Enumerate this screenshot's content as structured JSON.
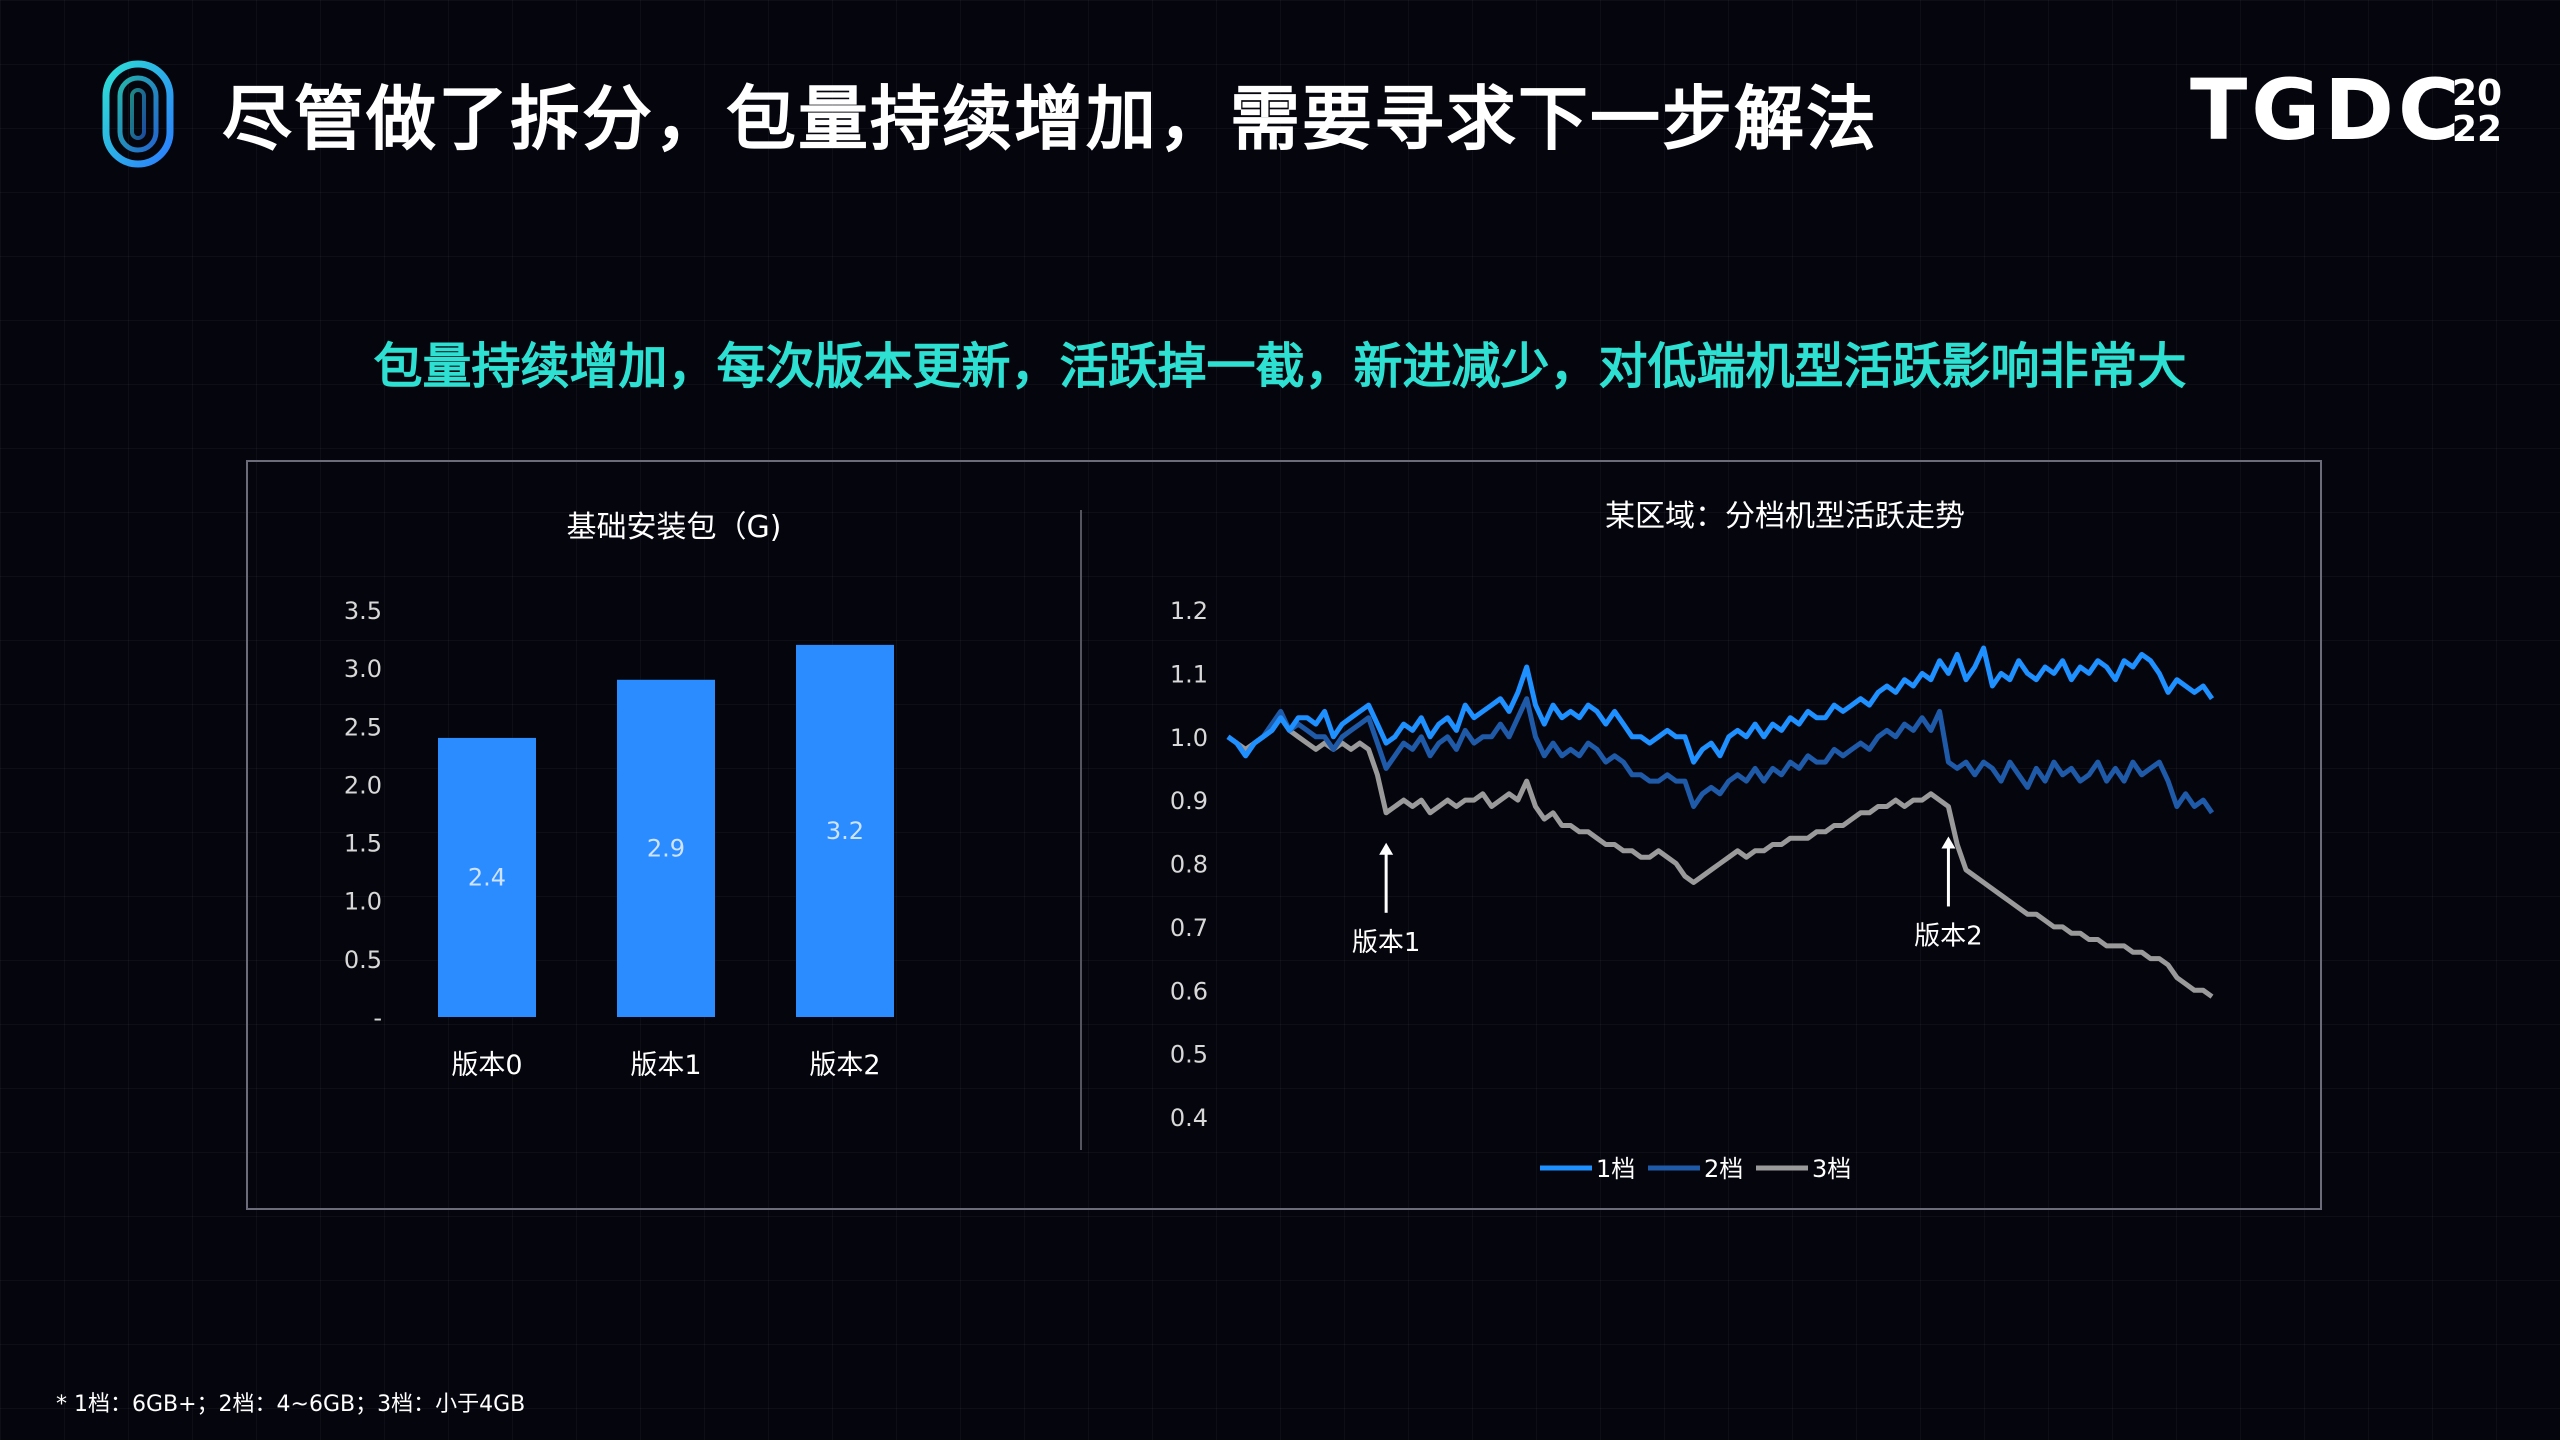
{
  "header": {
    "title": "尽管做了拆分，包量持续增加，需要寻求下一步解法",
    "brand": "TGDC",
    "brand_year_top": "20",
    "brand_year_bottom": "22"
  },
  "subtitle": "包量持续增加，每次版本更新，活跃掉一截，新进减少，对低端机型活跃影响非常大",
  "colors": {
    "accent": "#2de0d2",
    "bar": "#2b8cff",
    "tier1": "#1e90ff",
    "tier2": "#1f5aa8",
    "tier3": "#9a9a9a"
  },
  "chart_data": [
    {
      "type": "bar",
      "title": "基础安装包（G)",
      "categories": [
        "版本0",
        "版本1",
        "版本2"
      ],
      "values": [
        2.4,
        2.9,
        3.2
      ],
      "data_labels": [
        "2.4",
        "2.9",
        "3.2"
      ],
      "ylim": [
        0,
        3.5
      ],
      "yticks": [
        0,
        0.5,
        1.0,
        1.5,
        2.0,
        2.5,
        3.0,
        3.5
      ],
      "ytick_labels": [
        "-",
        "0.5",
        "1.0",
        "1.5",
        "2.0",
        "2.5",
        "3.0",
        "3.5"
      ],
      "grid": false
    },
    {
      "type": "line",
      "title": "某区域：分档机型活跃走势",
      "ylim": [
        0.4,
        1.2
      ],
      "yticks": [
        0.4,
        0.5,
        0.6,
        0.7,
        0.8,
        0.9,
        1.0,
        1.1,
        1.2
      ],
      "ytick_labels": [
        "0.4",
        "0.5",
        "0.6",
        "0.7",
        "0.8",
        "0.9",
        "1.0",
        "1.1",
        "1.2"
      ],
      "legend_position": "bottom",
      "grid": false,
      "series": [
        {
          "name": "1档",
          "values": [
            1.0,
            0.99,
            0.97,
            0.99,
            1.0,
            1.01,
            1.03,
            1.01,
            1.03,
            1.03,
            1.02,
            1.04,
            1.0,
            1.02,
            1.03,
            1.04,
            1.05,
            1.02,
            0.99,
            1.0,
            1.02,
            1.01,
            1.03,
            1.0,
            1.02,
            1.03,
            1.01,
            1.05,
            1.03,
            1.04,
            1.05,
            1.06,
            1.04,
            1.07,
            1.11,
            1.05,
            1.02,
            1.05,
            1.03,
            1.04,
            1.03,
            1.05,
            1.04,
            1.02,
            1.04,
            1.02,
            1.0,
            1.0,
            0.99,
            1.0,
            1.01,
            1.0,
            1.0,
            0.96,
            0.98,
            0.99,
            0.97,
            1.0,
            1.01,
            1.0,
            1.02,
            1.0,
            1.02,
            1.01,
            1.03,
            1.02,
            1.04,
            1.03,
            1.03,
            1.05,
            1.04,
            1.05,
            1.06,
            1.05,
            1.07,
            1.08,
            1.07,
            1.09,
            1.08,
            1.1,
            1.09,
            1.12,
            1.1,
            1.13,
            1.09,
            1.11,
            1.14,
            1.08,
            1.1,
            1.09,
            1.12,
            1.1,
            1.09,
            1.11,
            1.1,
            1.12,
            1.09,
            1.11,
            1.1,
            1.12,
            1.11,
            1.09,
            1.12,
            1.11,
            1.13,
            1.12,
            1.1,
            1.07,
            1.09,
            1.08,
            1.07,
            1.08,
            1.06
          ]
        },
        {
          "name": "2档",
          "values": [
            1.0,
            0.99,
            0.97,
            0.99,
            1.0,
            1.02,
            1.04,
            1.01,
            1.02,
            1.01,
            1.0,
            1.0,
            0.98,
            1.0,
            1.01,
            1.02,
            1.03,
            0.99,
            0.95,
            0.97,
            0.99,
            0.98,
            1.0,
            0.97,
            0.99,
            1.0,
            0.98,
            1.01,
            0.99,
            1.0,
            1.0,
            1.02,
            1.0,
            1.03,
            1.06,
            1.0,
            0.97,
            0.99,
            0.97,
            0.98,
            0.97,
            0.99,
            0.98,
            0.96,
            0.97,
            0.96,
            0.94,
            0.94,
            0.93,
            0.93,
            0.94,
            0.93,
            0.93,
            0.89,
            0.91,
            0.92,
            0.91,
            0.93,
            0.94,
            0.93,
            0.95,
            0.93,
            0.95,
            0.94,
            0.96,
            0.95,
            0.97,
            0.96,
            0.96,
            0.98,
            0.97,
            0.98,
            0.99,
            0.98,
            1.0,
            1.01,
            1.0,
            1.02,
            1.01,
            1.03,
            1.01,
            1.04,
            0.96,
            0.95,
            0.96,
            0.94,
            0.96,
            0.95,
            0.93,
            0.96,
            0.94,
            0.92,
            0.95,
            0.93,
            0.96,
            0.94,
            0.95,
            0.93,
            0.94,
            0.96,
            0.93,
            0.95,
            0.93,
            0.96,
            0.94,
            0.95,
            0.96,
            0.93,
            0.89,
            0.91,
            0.89,
            0.9,
            0.88
          ]
        },
        {
          "name": "3档",
          "values": [
            1.0,
            0.99,
            0.98,
            0.99,
            1.0,
            1.01,
            1.03,
            1.01,
            1.0,
            0.99,
            0.98,
            0.99,
            0.98,
            0.99,
            0.98,
            0.99,
            0.98,
            0.94,
            0.88,
            0.89,
            0.9,
            0.89,
            0.9,
            0.88,
            0.89,
            0.9,
            0.89,
            0.9,
            0.9,
            0.91,
            0.89,
            0.9,
            0.91,
            0.9,
            0.93,
            0.89,
            0.87,
            0.88,
            0.86,
            0.86,
            0.85,
            0.85,
            0.84,
            0.83,
            0.83,
            0.82,
            0.82,
            0.81,
            0.81,
            0.82,
            0.81,
            0.8,
            0.78,
            0.77,
            0.78,
            0.79,
            0.8,
            0.81,
            0.82,
            0.81,
            0.82,
            0.82,
            0.83,
            0.83,
            0.84,
            0.84,
            0.84,
            0.85,
            0.85,
            0.86,
            0.86,
            0.87,
            0.88,
            0.88,
            0.89,
            0.89,
            0.9,
            0.89,
            0.9,
            0.9,
            0.91,
            0.9,
            0.89,
            0.83,
            0.79,
            0.78,
            0.77,
            0.76,
            0.75,
            0.74,
            0.73,
            0.72,
            0.72,
            0.71,
            0.7,
            0.7,
            0.69,
            0.69,
            0.68,
            0.68,
            0.67,
            0.67,
            0.67,
            0.66,
            0.66,
            0.65,
            0.65,
            0.64,
            0.62,
            0.61,
            0.6,
            0.6,
            0.59
          ]
        }
      ],
      "annotations": [
        {
          "text": "版本1",
          "x_index": 18
        },
        {
          "text": "版本2",
          "x_index": 82
        }
      ]
    }
  ],
  "footnote": "* 1档：6GB+；2档：4~6GB；3档：小于4GB"
}
